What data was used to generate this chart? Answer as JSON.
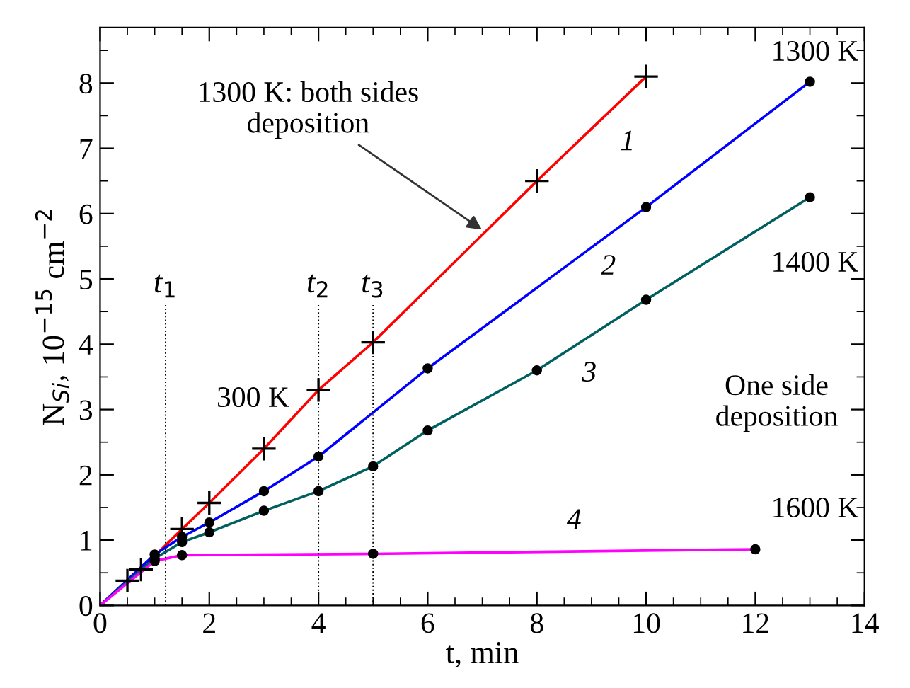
{
  "chart_data": {
    "type": "line",
    "xlabel": "t, min",
    "ylabel": "N$_{Si}$, 10$^{−15}$ cm$^{−2}$",
    "xlim": [
      0,
      14
    ],
    "xticks": [
      0,
      2,
      4,
      6,
      8,
      10,
      12,
      14
    ],
    "ylim": [
      0,
      8.85
    ],
    "yticks": [
      0,
      1,
      2,
      3,
      4,
      5,
      6,
      7,
      8
    ],
    "grid": false,
    "series": [
      {
        "color": "#ff0000",
        "marker": "cross",
        "x": [
          0,
          0.5,
          0.75,
          1.5,
          2,
          3,
          4,
          5,
          8,
          10
        ],
        "values": [
          0,
          0.38,
          0.55,
          1.17,
          1.57,
          2.4,
          3.3,
          4.03,
          6.5,
          8.1
        ]
      },
      {
        "color": "#0000ff",
        "marker": "circle",
        "x": [
          0,
          1,
          1.5,
          2,
          3,
          4,
          6,
          10,
          13
        ],
        "values": [
          0,
          0.78,
          1.05,
          1.27,
          1.75,
          2.28,
          3.63,
          6.1,
          8.02
        ]
      },
      {
        "color": "#006060",
        "marker": "circle",
        "x": [
          0,
          1,
          1.5,
          2,
          3,
          4,
          5,
          6,
          8,
          10,
          13
        ],
        "values": [
          0,
          0.72,
          0.97,
          1.12,
          1.45,
          1.75,
          2.13,
          2.68,
          3.6,
          4.68,
          6.25
        ]
      },
      {
        "color": "#ff00ff",
        "marker": "circle",
        "x": [
          0,
          1,
          1.5,
          5,
          12
        ],
        "values": [
          0,
          0.68,
          0.77,
          0.79,
          0.86
        ]
      }
    ],
    "ref_lines": [
      {
        "axis": "x",
        "value": 1.2,
        "label": "t$_{1}$",
        "line_style": "dotted",
        "color": "#000000"
      },
      {
        "axis": "x",
        "value": 4,
        "label": "t$_{2}$",
        "line_style": "dotted",
        "color": "#000000"
      },
      {
        "axis": "x",
        "value": 5,
        "label": "t$_{3}$",
        "line_style": "dotted",
        "color": "#000000"
      }
    ],
    "annotations": [
      {
        "text": "1300 K: both sides\ndeposition",
        "x": 7.05,
        "y": 5.72
      },
      "300 K",
      "1300 K",
      "1400 K",
      "1600 K",
      "One side\ndeposition",
      "1",
      "2",
      "3",
      "4"
    ]
  }
}
